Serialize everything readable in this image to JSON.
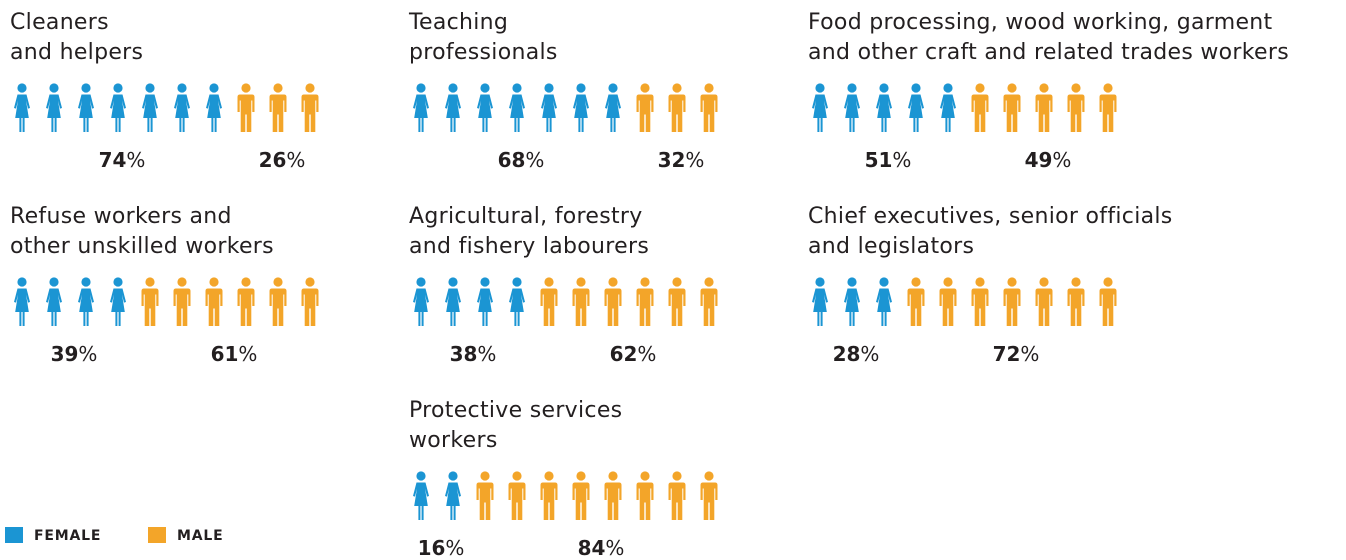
{
  "colors": {
    "female": "#1b95d3",
    "male": "#f3a529",
    "text": "#231f20"
  },
  "icons": {
    "female": "woman-icon",
    "male": "man-icon"
  },
  "legend": {
    "female_label": "FEMALE",
    "male_label": "MALE"
  },
  "chart_data": {
    "type": "pictogram",
    "icons_per_row": 10,
    "series_names": [
      "FEMALE",
      "MALE"
    ],
    "panels": [
      {
        "title_lines": [
          "Cleaners",
          "and helpers"
        ],
        "female_pct": 74,
        "male_pct": 26,
        "female_icons": 7,
        "male_icons": 3
      },
      {
        "title_lines": [
          "Teaching",
          "professionals"
        ],
        "female_pct": 68,
        "male_pct": 32,
        "female_icons": 7,
        "male_icons": 3
      },
      {
        "title_lines": [
          "Food processing, wood working, garment",
          "and other craft and related trades workers"
        ],
        "female_pct": 51,
        "male_pct": 49,
        "female_icons": 5,
        "male_icons": 5
      },
      {
        "title_lines": [
          "Refuse workers and",
          "other unskilled workers"
        ],
        "female_pct": 39,
        "male_pct": 61,
        "female_icons": 4,
        "male_icons": 6
      },
      {
        "title_lines": [
          "Agricultural, forestry",
          "and fishery labourers"
        ],
        "female_pct": 38,
        "male_pct": 62,
        "female_icons": 4,
        "male_icons": 6
      },
      {
        "title_lines": [
          "Chief executives, senior officials",
          "and legislators"
        ],
        "female_pct": 28,
        "male_pct": 72,
        "female_icons": 3,
        "male_icons": 7
      },
      {
        "title_lines": [
          "Protective services",
          "workers"
        ],
        "female_pct": 16,
        "male_pct": 84,
        "female_icons": 2,
        "male_icons": 8
      }
    ]
  }
}
